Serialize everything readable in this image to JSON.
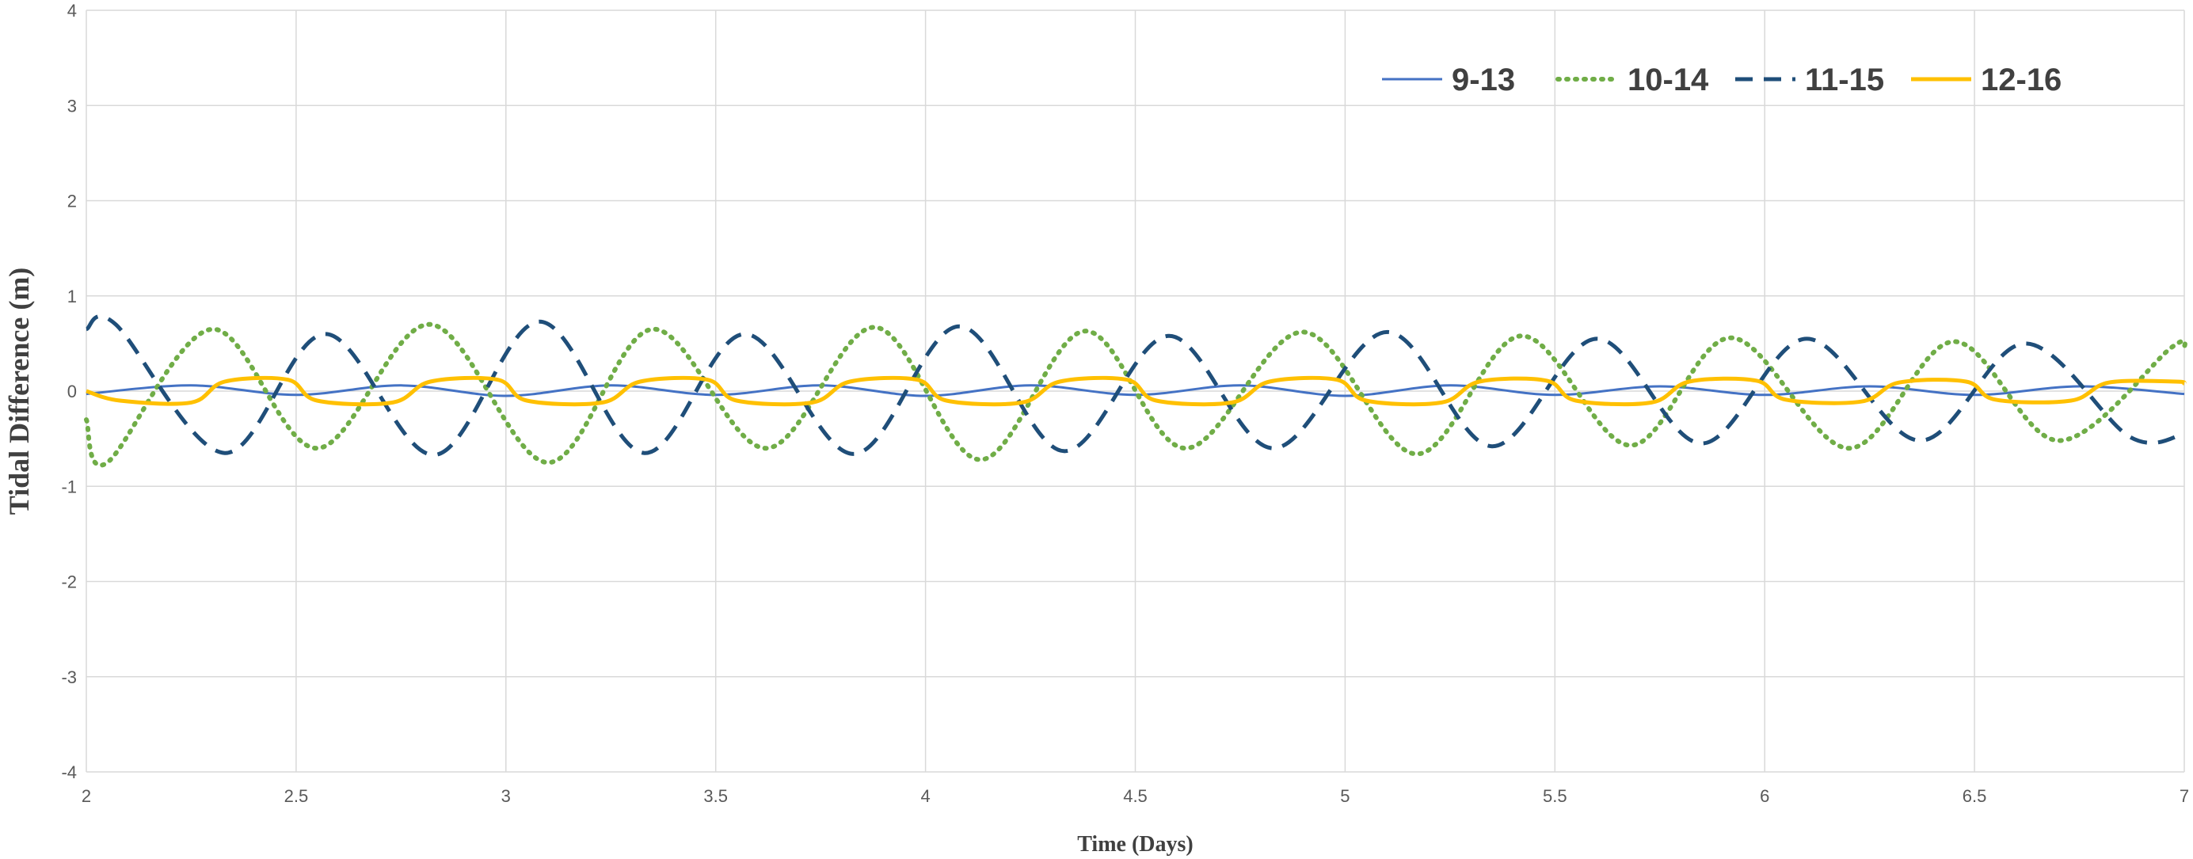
{
  "chart_data": {
    "type": "line",
    "title": "",
    "xlabel": "Time (Days)",
    "ylabel": "Tidal Difference (m)",
    "xlim": [
      2,
      7
    ],
    "ylim": [
      -4,
      4
    ],
    "xticks": [
      2,
      2.5,
      3,
      3.5,
      4,
      4.5,
      5,
      5.5,
      6,
      6.5,
      7
    ],
    "xtick_labels": [
      "2",
      "2.5",
      "3",
      "3.5",
      "4",
      "4.5",
      "5",
      "5.5",
      "6",
      "6.5",
      "7"
    ],
    "yticks": [
      -4,
      -3,
      -2,
      -1,
      0,
      1,
      2,
      3,
      4
    ],
    "ytick_labels": [
      "-4",
      "-3",
      "-2",
      "-1",
      "0",
      "1",
      "2",
      "3",
      "4"
    ],
    "grid": true,
    "legend_position": "top-right",
    "series": [
      {
        "name": "9-13",
        "color": "#4472C4",
        "style": "solid",
        "x": [
          2.0,
          2.25,
          2.5,
          2.75,
          3.0,
          3.25,
          3.5,
          3.75,
          4.0,
          4.25,
          4.5,
          4.75,
          5.0,
          5.25,
          5.5,
          5.75,
          6.0,
          6.25,
          6.5,
          6.75,
          7.0
        ],
        "y": [
          -0.03,
          0.06,
          -0.04,
          0.06,
          -0.05,
          0.06,
          -0.04,
          0.06,
          -0.05,
          0.06,
          -0.04,
          0.06,
          -0.05,
          0.06,
          -0.04,
          0.05,
          -0.04,
          0.05,
          -0.04,
          0.05,
          -0.03
        ]
      },
      {
        "name": "10-14",
        "color": "#70AD47",
        "style": "dotted",
        "x": [
          2.0,
          2.05,
          2.3,
          2.55,
          2.82,
          3.1,
          3.35,
          3.62,
          3.88,
          4.13,
          4.38,
          4.62,
          4.9,
          5.17,
          5.42,
          5.68,
          5.92,
          6.2,
          6.45,
          6.7,
          6.97,
          7.0
        ],
        "y": [
          -0.3,
          -0.75,
          0.65,
          -0.6,
          0.7,
          -0.75,
          0.65,
          -0.6,
          0.67,
          -0.72,
          0.63,
          -0.6,
          0.62,
          -0.66,
          0.58,
          -0.57,
          0.56,
          -0.6,
          0.52,
          -0.52,
          0.46,
          0.44
        ]
      },
      {
        "name": "11-15",
        "color": "#1F4E79",
        "style": "dashed",
        "x": [
          2.0,
          2.07,
          2.33,
          2.57,
          2.83,
          3.08,
          3.33,
          3.57,
          3.83,
          4.08,
          4.33,
          4.58,
          4.83,
          5.1,
          5.35,
          5.6,
          5.85,
          6.1,
          6.37,
          6.62,
          6.87,
          7.0
        ],
        "y": [
          0.65,
          0.7,
          -0.65,
          0.6,
          -0.67,
          0.73,
          -0.65,
          0.6,
          -0.66,
          0.68,
          -0.63,
          0.58,
          -0.6,
          0.62,
          -0.58,
          0.55,
          -0.55,
          0.55,
          -0.52,
          0.5,
          -0.48,
          -0.45
        ]
      },
      {
        "name": "12-16",
        "color": "#FFC000",
        "style": "solid-thick",
        "x": [
          2.0,
          2.08,
          2.25,
          2.33,
          2.48,
          2.55,
          2.73,
          2.82,
          2.98,
          3.05,
          3.23,
          3.32,
          3.48,
          3.55,
          3.73,
          3.82,
          3.98,
          4.05,
          4.23,
          4.32,
          4.48,
          4.55,
          4.73,
          4.82,
          4.98,
          5.05,
          5.23,
          5.32,
          5.48,
          5.55,
          5.73,
          5.82,
          5.98,
          6.05,
          6.23,
          6.32,
          6.48,
          6.55,
          6.73,
          6.82,
          6.98,
          7.0
        ],
        "y": [
          0.0,
          -0.1,
          -0.12,
          0.1,
          0.12,
          -0.1,
          -0.12,
          0.1,
          0.12,
          -0.1,
          -0.12,
          0.1,
          0.12,
          -0.1,
          -0.12,
          0.1,
          0.12,
          -0.1,
          -0.12,
          0.1,
          0.12,
          -0.1,
          -0.12,
          0.1,
          0.12,
          -0.1,
          -0.12,
          0.1,
          0.11,
          -0.1,
          -0.12,
          0.1,
          0.11,
          -0.09,
          -0.11,
          0.09,
          0.1,
          -0.09,
          -0.1,
          0.09,
          0.1,
          0.08
        ]
      }
    ]
  }
}
